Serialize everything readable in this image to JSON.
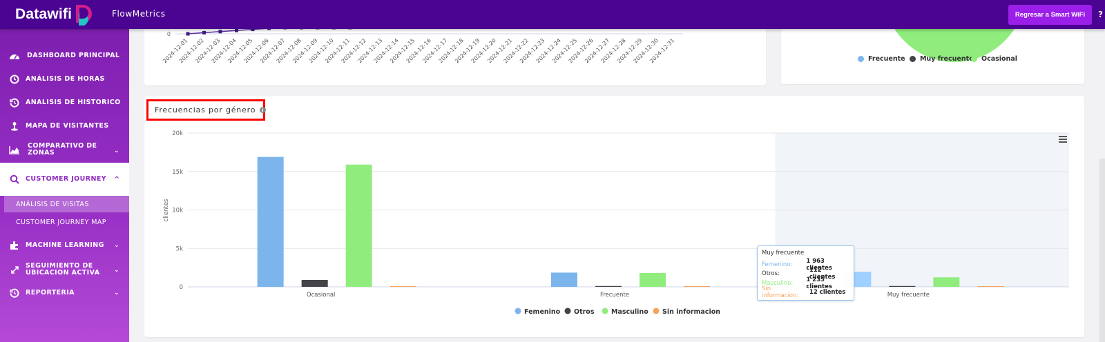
{
  "header": {
    "brand": "Datawifi",
    "app_name": "FlowMetrics",
    "smart_wifi_button": "Regresar a Smart WiFi",
    "help": "?"
  },
  "sidebar": {
    "items": [
      {
        "label": "DASHBOARD PRINCIPAL",
        "icon": "dashboard-icon"
      },
      {
        "label": "ANÁLISIS DE HORAS",
        "icon": "clock-icon"
      },
      {
        "label": "ANALISIS DE HISTORICO",
        "icon": "history-icon"
      },
      {
        "label": "MAPA DE VISITANTES",
        "icon": "map-pin-icon"
      },
      {
        "label": "COMPARATIVO DE ZONAS",
        "icon": "area-chart-icon"
      },
      {
        "label": "CUSTOMER JOURNEY",
        "icon": "search-icon"
      },
      {
        "label": "MACHINE LEARNING",
        "icon": "puzzle-icon"
      },
      {
        "label": "SEGUIMIENTO DE UBICACION ACTIVA",
        "icon": "expand-icon"
      },
      {
        "label": "REPORTERIA",
        "icon": "history-icon"
      }
    ],
    "sub_items": [
      {
        "label": "ANÁLISIS DE VISITAS"
      },
      {
        "label": "CUSTOMER JOURNEY MAP"
      }
    ]
  },
  "top_chart": {
    "zero_tick": "0",
    "dates": [
      "2024-12-01",
      "2024-12-02",
      "2024-12-03",
      "2024-12-04",
      "2024-12-05",
      "2024-12-06",
      "2024-12-07",
      "2024-12-08",
      "2024-12-09",
      "2024-12-10",
      "2024-12-11",
      "2024-12-12",
      "2024-12-13",
      "2024-12-14",
      "2024-12-15",
      "2024-12-16",
      "2024-12-17",
      "2024-12-18",
      "2024-12-19",
      "2024-12-20",
      "2024-12-21",
      "2024-12-22",
      "2024-12-23",
      "2024-12-24",
      "2024-12-25",
      "2024-12-26",
      "2024-12-27",
      "2024-12-28",
      "2024-12-29",
      "2024-12-30",
      "2024-12-31"
    ]
  },
  "pie_legend": [
    {
      "label": "Frecuente",
      "color": "#7cb5ec"
    },
    {
      "label": "Muy frecuente",
      "color": "#434348"
    },
    {
      "label": "Ocasional",
      "color": "#90ed7d"
    }
  ],
  "section": {
    "title": "Frecuencias por género"
  },
  "chart_data": {
    "type": "bar",
    "title": "",
    "xlabel": "",
    "ylabel": "clientes",
    "ylim": [
      0,
      20000
    ],
    "yticks": [
      "0",
      "5k",
      "10k",
      "15k",
      "20k"
    ],
    "categories": [
      "Ocasional",
      "Frecuente",
      "Muy frecuente"
    ],
    "grid": true,
    "legend_position": "bottom-center",
    "series": [
      {
        "name": "Femenino",
        "color": "#7cb5ec",
        "values": [
          16900,
          1850,
          1963
        ]
      },
      {
        "name": "Otros",
        "color": "#434348",
        "values": [
          900,
          110,
          112
        ]
      },
      {
        "name": "Masculino",
        "color": "#90ed7d",
        "values": [
          15900,
          1800,
          1235
        ]
      },
      {
        "name": "Sin informacion",
        "color": "#f7a35c",
        "values": [
          60,
          10,
          12
        ]
      }
    ],
    "hovered_category": 2
  },
  "tooltip": {
    "title": "Muy frecuente",
    "rows": [
      {
        "label": "Femenino:",
        "value": "1 963 clientes",
        "color": "#7cb5ec"
      },
      {
        "label": "Otros:",
        "value": "112 clientes",
        "color": "#333333"
      },
      {
        "label": "Masculino:",
        "value": "1 235 clientes",
        "color": "#90ed7d"
      },
      {
        "label": "Sin informacion:",
        "value": "12 clientes",
        "color": "#f7a35c"
      }
    ]
  }
}
